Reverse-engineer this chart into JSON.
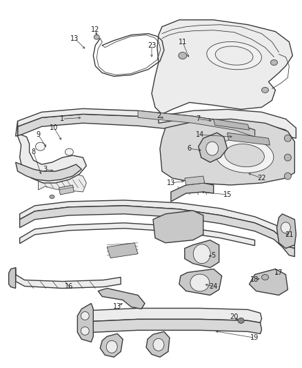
{
  "bg_color": "#ffffff",
  "line_color": "#3a3a3a",
  "label_color": "#1a1a1a",
  "figsize": [
    4.38,
    5.33
  ],
  "dpi": 100,
  "lw_main": 1.0,
  "lw_thin": 0.6,
  "lw_thick": 1.4,
  "gray_fill": "#d8d8d8",
  "gray_dark": "#b8b8b8",
  "gray_light": "#ececec",
  "gray_mid": "#c8c8c8"
}
